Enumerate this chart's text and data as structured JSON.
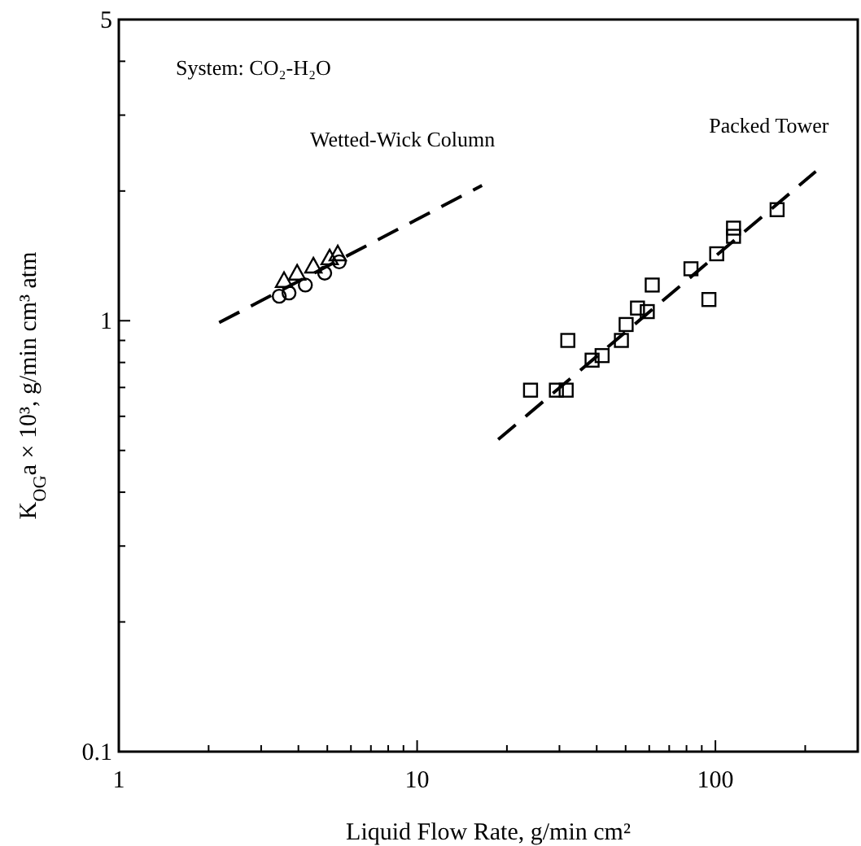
{
  "chart_data": {
    "type": "scatter",
    "log": "xy",
    "xlabel": "Liquid Flow Rate, g/min cm²",
    "ylabel": "K$_{OG}$a × 10³, g/min cm³ atm",
    "xlim": [
      1,
      300
    ],
    "ylim": [
      0.1,
      5
    ],
    "xticks": [
      1,
      {
        "value": 2,
        "label": null
      },
      {
        "value": 3,
        "label": null
      },
      {
        "value": 4,
        "label": null
      },
      {
        "value": 5,
        "label": null
      },
      {
        "value": 6,
        "label": null
      },
      {
        "value": 7,
        "label": null
      },
      {
        "value": 8,
        "label": null
      },
      {
        "value": 9,
        "label": null
      },
      10,
      {
        "value": 20,
        "label": null
      },
      {
        "value": 30,
        "label": null
      },
      {
        "value": 40,
        "label": null
      },
      {
        "value": 50,
        "label": null
      },
      {
        "value": 60,
        "label": null
      },
      {
        "value": 70,
        "label": null
      },
      {
        "value": 80,
        "label": null
      },
      {
        "value": 90,
        "label": null
      },
      100,
      {
        "value": 200,
        "label": null
      }
    ],
    "yticks": [
      0.1,
      {
        "value": 0.2,
        "label": null
      },
      {
        "value": 0.3,
        "label": null
      },
      {
        "value": 0.4,
        "label": null
      },
      {
        "value": 0.5,
        "label": null
      },
      {
        "value": 0.6,
        "label": null
      },
      {
        "value": 0.7,
        "label": null
      },
      {
        "value": 0.8,
        "label": null
      },
      {
        "value": 0.9,
        "label": null
      },
      1,
      {
        "value": 2,
        "label": null
      },
      {
        "value": 3,
        "label": null
      },
      {
        "value": 4,
        "label": null
      },
      5
    ],
    "series": [
      {
        "marker": "circle",
        "color": "#000000",
        "x": [
          3.45,
          3.72,
          4.22,
          4.9,
          5.48
        ],
        "values": [
          1.14,
          1.16,
          1.21,
          1.29,
          1.37
        ]
      },
      {
        "marker": "triangle",
        "color": "#000000",
        "x": [
          3.58,
          3.96,
          4.49,
          5.09,
          5.42
        ],
        "values": [
          1.24,
          1.29,
          1.34,
          1.4,
          1.43
        ]
      },
      {
        "type": "line",
        "name": "Wetted-Wick Column",
        "line_style": "dashed",
        "color": "#000000",
        "x": [
          2.17,
          16.5
        ],
        "values": [
          0.99,
          2.06
        ]
      },
      {
        "marker": "square",
        "color": "#000000",
        "x": [
          24.0,
          29.3,
          31.6,
          32.0,
          38.6,
          41.7,
          48.4,
          50.2,
          54.8,
          59.1,
          61.4,
          82.8,
          95.1,
          101,
          115,
          115,
          161
        ],
        "values": [
          0.69,
          0.69,
          0.69,
          0.9,
          0.81,
          0.83,
          0.9,
          0.98,
          1.07,
          1.05,
          1.21,
          1.32,
          1.12,
          1.43,
          1.57,
          1.64,
          1.81
        ]
      },
      {
        "type": "line",
        "name": "Packed Tower",
        "line_style": "dashed",
        "color": "#000000",
        "x": [
          18.7,
          217
        ],
        "values": [
          0.53,
          2.22
        ]
      }
    ],
    "annotations": [
      "System: CO₂-H₂O"
    ]
  }
}
